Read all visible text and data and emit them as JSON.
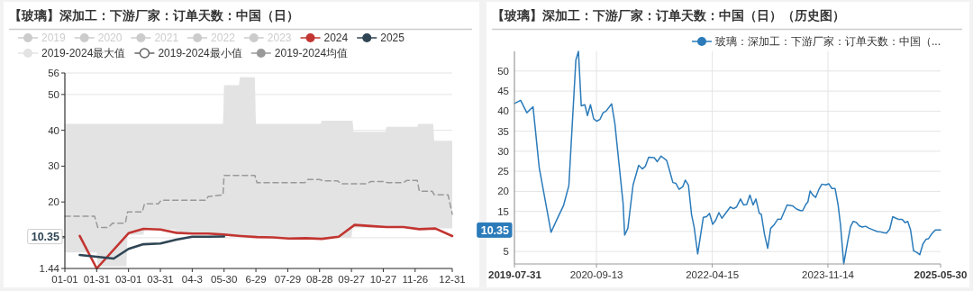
{
  "chart_data": [
    {
      "type": "line",
      "title": "【玻璃】深加工：下游厂家：订单天数：中国（日）",
      "legend": "top",
      "grid": "y",
      "xlim": [
        "--01-01",
        "--12-31"
      ],
      "xticks": [
        {
          "value": "--01-01",
          "label": "01-01"
        },
        {
          "value": "--01-31",
          "label": "01-31"
        },
        {
          "value": "--03-01",
          "label": "03-01"
        },
        {
          "value": "--03-31",
          "label": "03-31"
        },
        {
          "value": "--04-30",
          "label": "04-3"
        },
        {
          "value": "--05-30",
          "label": "05-30"
        },
        {
          "value": "--06-29",
          "label": "6-29"
        },
        {
          "value": "--07-29",
          "label": "07-29"
        },
        {
          "value": "--08-28",
          "label": "08-28"
        },
        {
          "value": "--09-27",
          "label": "09-27"
        },
        {
          "value": "--10-27",
          "label": "10-27"
        },
        {
          "value": "--11-26",
          "label": "11-26"
        },
        {
          "value": "--12-31",
          "label": "12-31"
        }
      ],
      "ylim": [
        1.44,
        56
      ],
      "yticks": [
        1.44,
        {
          "value": 10,
          "label": null
        },
        10.35,
        20,
        30,
        40,
        50,
        56
      ],
      "series": [
        {
          "name": "2019",
          "color": "#cccccc"
        },
        {
          "name": "2020",
          "color": "#cccccc"
        },
        {
          "name": "2021",
          "color": "#cccccc"
        },
        {
          "name": "2022",
          "color": "#cccccc"
        },
        {
          "name": "2023",
          "color": "#cccccc"
        },
        {
          "name": "2024",
          "type": "line",
          "color": "#c23531",
          "x": [
            "--01-15",
            "--01-31",
            "--03-01",
            "--03-15",
            "--03-31",
            "--04-15",
            "--04-30",
            "--05-15",
            "--05-30",
            "--06-15",
            "--06-30",
            "--07-15",
            "--07-30",
            "--08-15",
            "--08-30",
            "--09-15",
            "--09-30",
            "--10-15",
            "--10-30",
            "--11-15",
            "--11-30",
            "--12-15",
            "--12-31"
          ],
          "values": [
            10.5,
            1.44,
            11.3,
            12.5,
            12.3,
            11.4,
            11.2,
            11.2,
            10.9,
            10.5,
            10.2,
            10.1,
            9.8,
            9.9,
            9.7,
            10.3,
            13.6,
            13.3,
            13.0,
            13.0,
            12.4,
            12.6,
            10.5
          ]
        },
        {
          "name": "2025",
          "type": "line",
          "color": "#2f4554",
          "x": [
            "--01-15",
            "--02-16",
            "--03-01",
            "--03-15",
            "--03-31",
            "--04-15",
            "--04-30",
            "--05-15",
            "--05-30"
          ],
          "values": [
            5.2,
            4.2,
            6.9,
            8.2,
            8.4,
            9.5,
            10.3,
            10.3,
            10.35
          ]
        },
        {
          "name": "2019-2024最大值",
          "type": "area",
          "color": "#e3e3e3",
          "x": [
            "--01-01",
            "--05-29",
            "--05-30",
            "--06-13",
            "--06-14",
            "--06-28",
            "--06-29",
            "--08-29",
            "--08-30",
            "--09-28",
            "--09-29",
            "--10-29",
            "--10-30",
            "--11-28",
            "--11-29",
            "--12-13",
            "--12-14",
            "--12-31"
          ],
          "values": [
            41.8,
            41.8,
            52.6,
            52.6,
            54.8,
            54.8,
            41.8,
            41.8,
            42.7,
            42.7,
            39.6,
            39.6,
            41.0,
            41.0,
            41.8,
            41.8,
            37.1,
            37.1
          ]
        },
        {
          "name": "2019-2024最小值",
          "type": "area",
          "color": "#ffffff",
          "x": [
            "--01-01",
            "--01-31",
            "--02-01",
            "--02-28",
            "--02-29",
            "--03-15",
            "--03-16",
            "--04-14",
            "--04-15",
            "--05-29",
            "--05-30",
            "--06-28",
            "--06-29",
            "--09-27",
            "--09-28",
            "--11-25",
            "--11-26",
            "--12-31"
          ],
          "values": [
            5.9,
            5.9,
            2.0,
            2.0,
            10.9,
            10.9,
            12.3,
            12.3,
            11.0,
            11.0,
            10.5,
            10.5,
            10.0,
            10.0,
            12.8,
            12.8,
            12.6,
            12.6
          ]
        },
        {
          "name": "2019-2024均值",
          "type": "line",
          "line_style": "dashed",
          "color": "#999999",
          "x": [
            "--01-01",
            "--01-29",
            "--02-01",
            "--02-11",
            "--02-15",
            "--02-27",
            "--02-29",
            "--03-14",
            "--03-16",
            "--03-29",
            "--04-01",
            "--05-13",
            "--05-15",
            "--05-29",
            "--05-30",
            "--06-28",
            "--06-30",
            "--08-14",
            "--08-17",
            "--08-28",
            "--08-31",
            "--09-14",
            "--09-17",
            "--10-12",
            "--10-15",
            "--10-28",
            "--10-31",
            "--11-15",
            "--11-18",
            "--11-28",
            "--11-30",
            "--12-12",
            "--12-14",
            "--12-27",
            "--12-31"
          ],
          "values": [
            16.0,
            16.0,
            12.9,
            12.9,
            14.1,
            14.1,
            17.2,
            17.2,
            19.5,
            19.5,
            20.5,
            20.5,
            21.5,
            22.0,
            27.4,
            27.4,
            25.4,
            25.4,
            26.3,
            26.3,
            25.9,
            25.9,
            25.1,
            25.1,
            25.7,
            25.7,
            25.4,
            25.4,
            26.0,
            26.0,
            23.0,
            23.0,
            22.0,
            22.0,
            16.6
          ]
        }
      ]
    },
    {
      "type": "line",
      "title": "【玻璃】深加工：下游厂家：订单天数：中国（日）（历史图）",
      "legend": "top right",
      "grid": true,
      "xlim": [
        "2019-07-31",
        "2025-05-30"
      ],
      "xticks": [
        "2019-07-31",
        "2020-09-13",
        "2022-04-15",
        "2023-11-14",
        "2025-05-30"
      ],
      "ylim": [
        1.9,
        54.9
      ],
      "yticks": [
        5,
        {
          "value": 10,
          "label": null
        },
        10.35,
        15,
        20,
        25,
        30,
        35,
        40,
        45,
        50
      ],
      "series": [
        {
          "name": "玻璃：深加工：下游厂家：订单天数：中国（...",
          "color": "#2b7bba",
          "x": [
            "2019-07-31",
            "2019-08-31",
            "2019-10-01",
            "2019-11-01",
            "2019-12-02",
            "2020-01-30",
            "2020-03-04",
            "2020-04-01",
            "2020-04-28",
            "2020-06-02",
            "2020-06-15",
            "2020-06-29",
            "2020-07-17",
            "2020-07-30",
            "2020-08-14",
            "2020-08-30",
            "2020-09-14",
            "2020-09-30",
            "2020-10-16",
            "2020-10-31",
            "2020-11-28",
            "2020-12-14",
            "2021-01-24",
            "2021-02-01",
            "2021-02-17",
            "2021-03-15",
            "2021-04-12",
            "2021-05-01",
            "2021-05-16",
            "2021-06-01",
            "2021-06-29",
            "2021-07-14",
            "2021-08-02",
            "2021-08-30",
            "2021-09-14",
            "2021-09-30",
            "2021-10-15",
            "2021-10-31",
            "2021-11-19",
            "2021-12-01",
            "2021-12-17",
            "2022-01-01",
            "2022-01-14",
            "2022-02-01",
            "2022-03-01",
            "2022-03-17",
            "2022-04-01",
            "2022-04-17",
            "2022-05-02",
            "2022-05-18",
            "2022-06-02",
            "2022-06-29",
            "2022-07-14",
            "2022-07-30",
            "2022-08-14",
            "2022-09-03",
            "2022-09-19",
            "2022-10-04",
            "2022-10-20",
            "2022-11-05",
            "2022-11-19",
            "2022-12-06",
            "2022-12-16",
            "2023-01-01",
            "2023-01-17",
            "2023-02-01",
            "2023-02-17",
            "2023-03-09",
            "2023-03-24",
            "2023-04-24",
            "2023-05-21",
            "2023-06-10",
            "2023-06-29",
            "2023-07-11",
            "2023-07-27",
            "2023-08-06",
            "2023-08-17",
            "2023-08-30",
            "2023-09-14",
            "2023-09-30",
            "2023-10-15",
            "2023-11-03",
            "2023-11-18",
            "2023-12-04",
            "2023-12-20",
            "2024-01-04",
            "2024-01-16",
            "2024-02-01",
            "2024-02-20",
            "2024-03-06",
            "2024-03-19",
            "2024-04-03",
            "2024-04-19",
            "2024-05-04",
            "2024-05-20",
            "2024-06-07",
            "2024-07-02",
            "2024-07-18",
            "2024-08-02",
            "2024-08-18",
            "2024-09-02",
            "2024-09-18",
            "2024-10-03",
            "2024-10-19",
            "2024-11-03",
            "2024-11-19",
            "2024-12-04",
            "2024-12-17",
            "2024-12-31",
            "2025-01-15",
            "2025-01-31",
            "2025-02-15",
            "2025-03-03",
            "2025-03-19",
            "2025-03-31",
            "2025-04-14",
            "2025-05-04",
            "2025-05-30"
          ],
          "values": [
            41.9,
            42.7,
            39.6,
            41.1,
            25.9,
            9.8,
            13.5,
            16.4,
            21.4,
            52.7,
            54.9,
            41.3,
            41.6,
            38.9,
            41.6,
            38.1,
            37.5,
            37.9,
            39.6,
            40.0,
            41.8,
            36.9,
            17.1,
            9.1,
            10.8,
            21.6,
            26.5,
            25.6,
            26.3,
            28.5,
            28.4,
            27.4,
            28.8,
            27.7,
            25.1,
            22.2,
            22.0,
            20.5,
            21.2,
            22.8,
            21.5,
            14.3,
            11.2,
            4.4,
            13.5,
            13.7,
            14.5,
            11.8,
            12.8,
            14.7,
            13.3,
            15.1,
            16.1,
            15.7,
            16.1,
            18.1,
            16.6,
            16.7,
            19.1,
            16.6,
            18.1,
            14.5,
            14.3,
            9.3,
            5.8,
            10.8,
            11.6,
            13.1,
            13.0,
            16.6,
            16.4,
            15.6,
            15.2,
            15.2,
            16.8,
            17.4,
            20.1,
            19.1,
            18.5,
            20.5,
            21.8,
            21.6,
            21.9,
            20.7,
            20.7,
            16.6,
            11.6,
            1.9,
            7.3,
            11.2,
            12.5,
            12.3,
            11.4,
            11.1,
            11.3,
            10.8,
            10.3,
            10.0,
            9.9,
            9.7,
            9.6,
            10.6,
            13.7,
            13.3,
            13.0,
            13.0,
            12.2,
            12.5,
            10.4,
            5.2,
            4.8,
            4.2,
            6.9,
            8.1,
            8.2,
            9.3,
            10.4,
            10.35
          ]
        }
      ]
    }
  ]
}
